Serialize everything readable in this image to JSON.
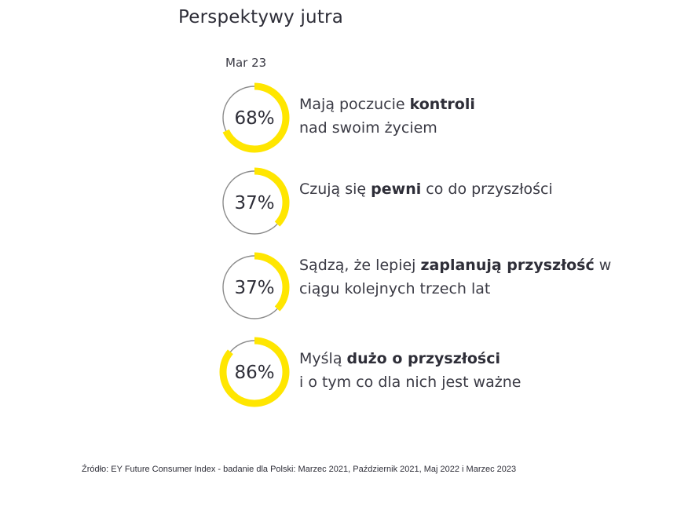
{
  "title": "Perspektywy jutra",
  "period": "Mar 23",
  "chart_data": {
    "type": "donut",
    "title": "Perspektywy jutra",
    "period": "Mar 23",
    "unit": "%",
    "items": [
      {
        "value": 68,
        "label": "68%",
        "text": [
          "Mają poczucie ",
          "kontroli",
          " nad swoim życiem"
        ],
        "description": "Mają poczucie kontroli nad swoim życiem"
      },
      {
        "value": 37,
        "label": "37%",
        "text": [
          "Czują się ",
          "pewni",
          " co do przyszłości"
        ],
        "description": "Czują się pewni co do przyszłości"
      },
      {
        "value": 37,
        "label": "37%",
        "text": [
          "Sądzą, że lepiej ",
          "zaplanują przyszłość",
          " w ciągu kolejnych trzech lat"
        ],
        "description": "Sądzą, że lepiej zaplanują przyszłość w ciągu kolejnych trzech lat"
      },
      {
        "value": 86,
        "label": "86%",
        "text": [
          "Myślą ",
          "dużo o przyszłości",
          " i o tym co dla nich jest ważne"
        ],
        "description": "Myślą dużo o przyszłości i o tym co dla nich jest ważne"
      }
    ]
  },
  "source": "Źródło: EY Future Consumer Index - badanie dla Polski: Marzec 2021, Październik 2021, Maj 2022 i Marzec 2023",
  "colors": {
    "accent": "#ffe600",
    "track": "#8c8c8c",
    "text": "#2e2e38"
  }
}
